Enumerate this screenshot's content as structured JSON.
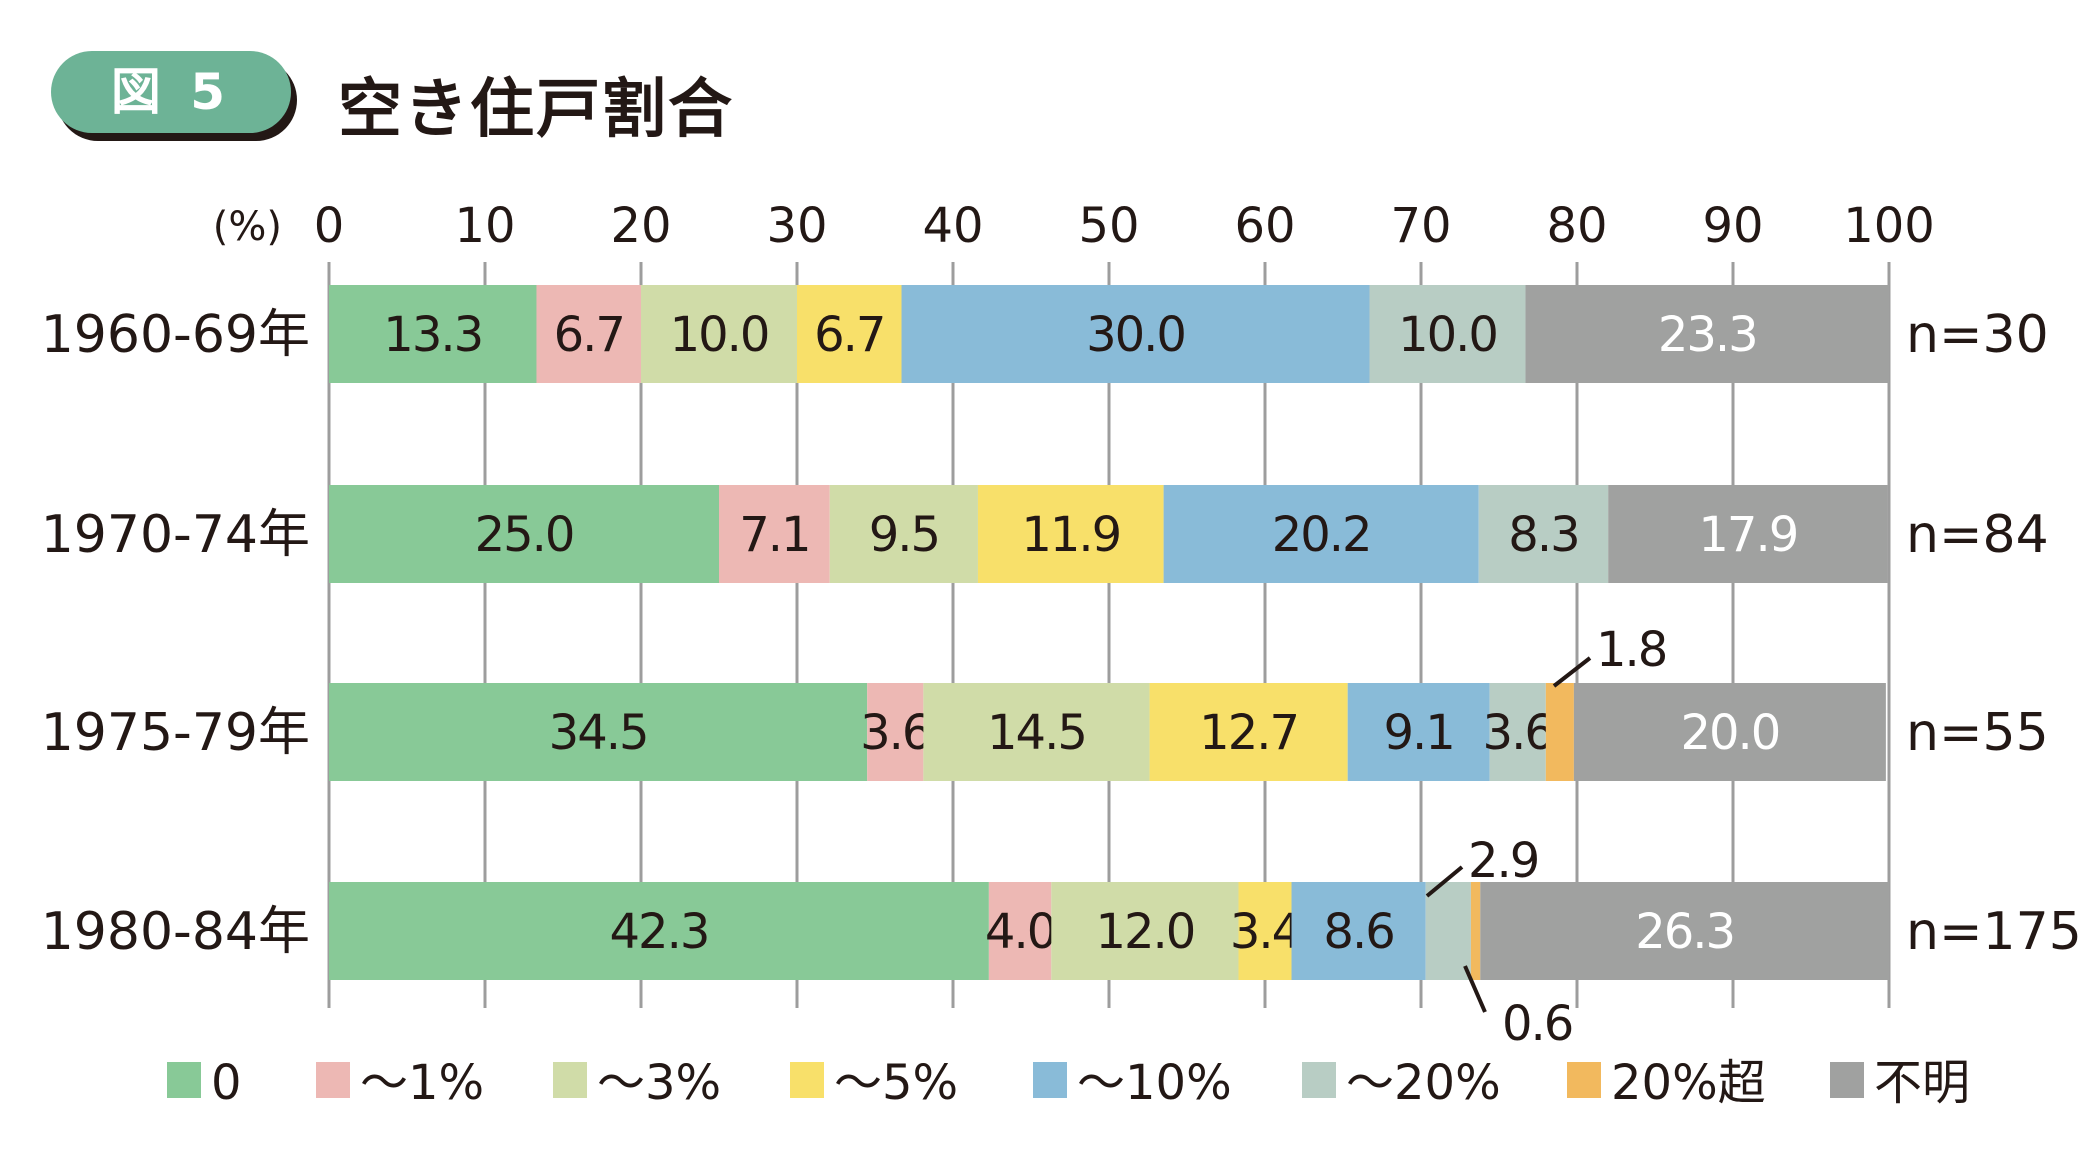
{
  "header": {
    "badge": "図 5",
    "title": "空き住戸割合"
  },
  "chart_data": {
    "type": "bar",
    "orientation": "horizontal-stacked-100",
    "title": "空き住戸割合",
    "unit_label": "(%)",
    "xlim": [
      0,
      100
    ],
    "x_ticks": [
      "0",
      "10",
      "20",
      "30",
      "40",
      "50",
      "60",
      "70",
      "80",
      "90",
      "100"
    ],
    "grid": true,
    "legend_position": "bottom",
    "categories": [
      "1960-69年",
      "1970-74年",
      "1975-79年",
      "1980-84年"
    ],
    "sample_sizes": [
      "n=30",
      "n=84",
      "n=55",
      "n=175"
    ],
    "series": [
      {
        "name": "0",
        "color": "#88c997",
        "values": [
          13.3,
          25.0,
          34.5,
          42.3
        ],
        "labels": [
          "13.3",
          "25.0",
          "34.5",
          "42.3"
        ]
      },
      {
        "name": "～1%",
        "color": "#edb8b4",
        "values": [
          6.7,
          7.1,
          3.6,
          4.0
        ],
        "labels": [
          "6.7",
          "7.1",
          "3.6",
          "4.0"
        ]
      },
      {
        "name": "～3%",
        "color": "#d0dca8",
        "values": [
          10.0,
          9.5,
          14.5,
          12.0
        ],
        "labels": [
          "10.0",
          "9.5",
          "14.5",
          "12.0"
        ]
      },
      {
        "name": "～5%",
        "color": "#f8e06a",
        "values": [
          6.7,
          11.9,
          12.7,
          3.4
        ],
        "labels": [
          "6.7",
          "11.9",
          "12.7",
          "3.4"
        ]
      },
      {
        "name": "～10%",
        "color": "#89bbd8",
        "values": [
          30.0,
          20.2,
          9.1,
          8.6
        ],
        "labels": [
          "30.0",
          "20.2",
          "9.1",
          "8.6"
        ]
      },
      {
        "name": "～20%",
        "color": "#b8cdc4",
        "values": [
          10.0,
          8.3,
          3.6,
          2.9
        ],
        "labels": [
          "10.0",
          "8.3",
          "3.6",
          "2.9"
        ]
      },
      {
        "name": "20%超",
        "color": "#f2b95e",
        "values": [
          0,
          0,
          1.8,
          0.6
        ],
        "labels": [
          "",
          "",
          "1.8",
          "0.6"
        ]
      },
      {
        "name": "不明",
        "color": "#a0a1a0",
        "values": [
          23.3,
          17.9,
          20.0,
          26.3
        ],
        "labels": [
          "23.3",
          "17.9",
          "20.0",
          "26.3"
        ]
      }
    ]
  }
}
